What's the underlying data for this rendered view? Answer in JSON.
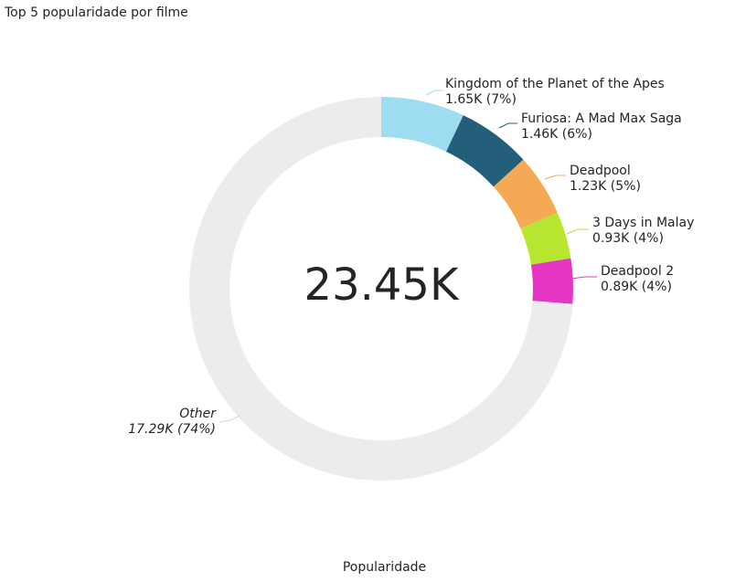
{
  "header": {
    "title": "Top 5 popularidade por filme"
  },
  "center_label": "23.45K",
  "footer": {
    "legend_title": "Popularidade"
  },
  "chart_data": {
    "type": "pie",
    "title": "Top 5 popularidade por filme",
    "donut": true,
    "total_label": "23.45K",
    "slices": [
      {
        "name": "Kingdom of the Planet of the Apes",
        "value": 1.65,
        "value_label": "1.65K (7%)",
        "color": "#9EDCF1"
      },
      {
        "name": "Furiosa: A Mad Max Saga",
        "value": 1.46,
        "value_label": "1.46K (6%)",
        "color": "#235E7A"
      },
      {
        "name": "Deadpool",
        "value": 1.23,
        "value_label": "1.23K (5%)",
        "color": "#F6A954"
      },
      {
        "name": "3 Days in Malay",
        "value": 0.93,
        "value_label": "0.93K (4%)",
        "color": "#B7E530"
      },
      {
        "name": "Deadpool 2",
        "value": 0.89,
        "value_label": "0.89K (4%)",
        "color": "#E535C3"
      },
      {
        "name": "Other",
        "value": 17.29,
        "value_label": "17.29K (74%)",
        "color": "#ECECEC"
      }
    ]
  }
}
